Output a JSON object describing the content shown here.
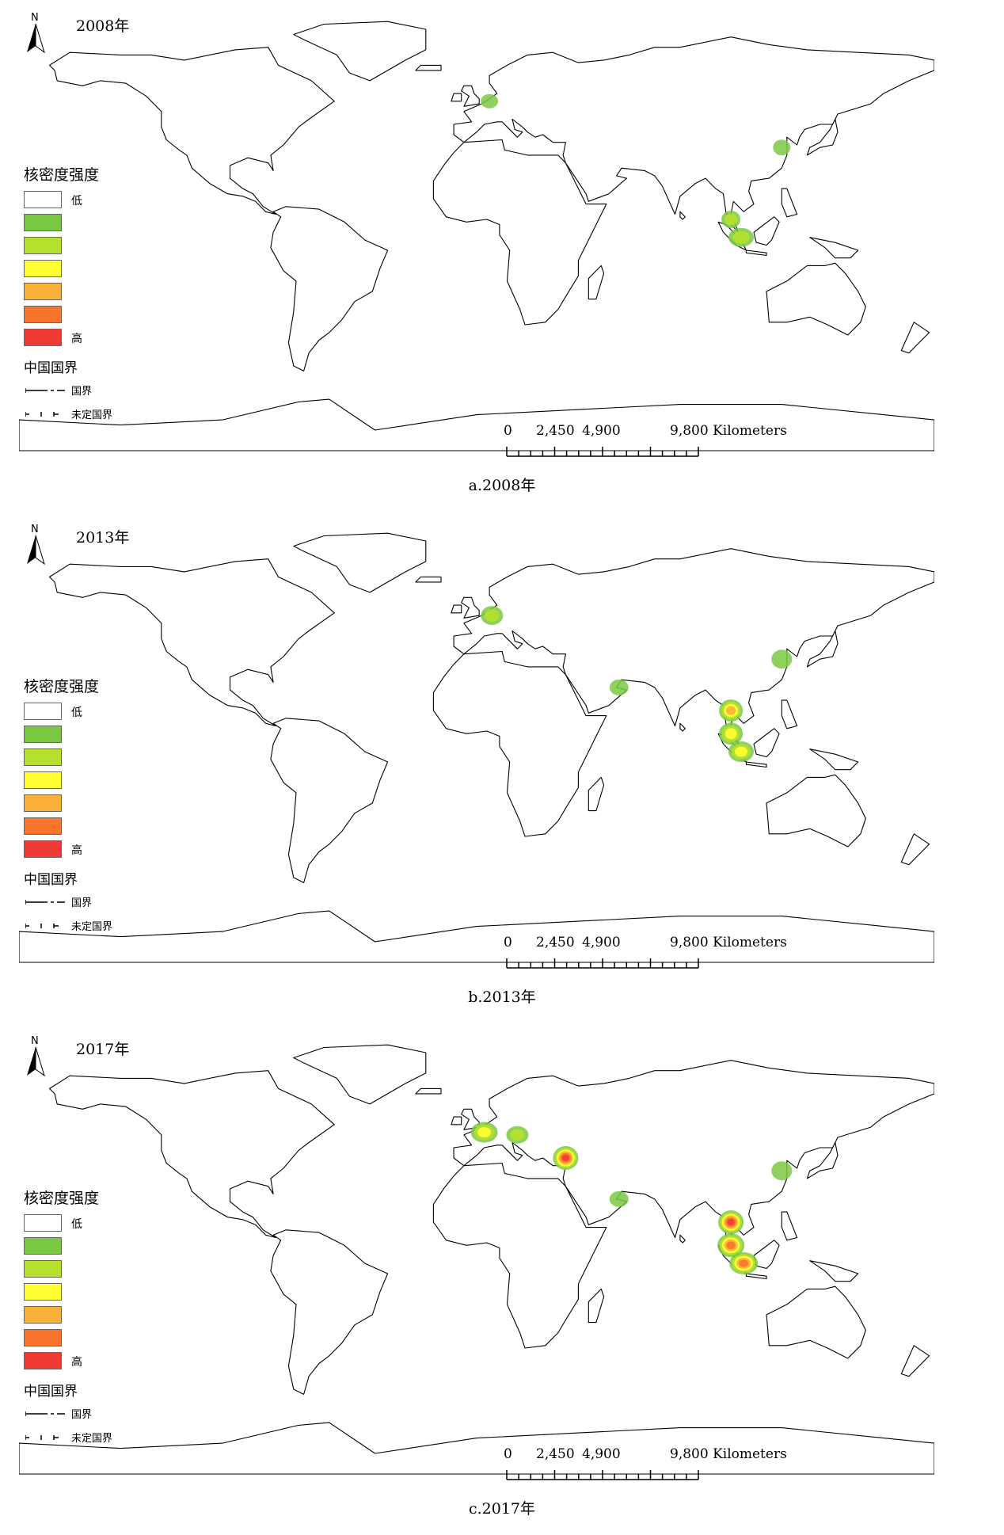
{
  "panels": [
    {
      "year_label": "2008年",
      "caption": "a.2008年",
      "hotspots": [
        {
          "name": "Western Europe",
          "lon": 5,
          "lat": 52,
          "level": 1,
          "rx": 11,
          "ry": 9
        },
        {
          "name": "Eastern China",
          "lon": 120,
          "lat": 34,
          "level": 1,
          "rx": 11,
          "ry": 10
        },
        {
          "name": "Malay Peninsula north",
          "lon": 100,
          "lat": 6,
          "level": 2,
          "rx": 12,
          "ry": 11
        },
        {
          "name": "Malay Peninsula south",
          "lon": 104,
          "lat": -1,
          "level": 2,
          "rx": 16,
          "ry": 12
        }
      ]
    },
    {
      "year_label": "2013年",
      "caption": "b.2013年",
      "hotspots": [
        {
          "name": "Western Europe",
          "lon": 6,
          "lat": 51,
          "level": 2,
          "rx": 14,
          "ry": 12
        },
        {
          "name": "Persian Gulf",
          "lon": 56,
          "lat": 23,
          "level": 1,
          "rx": 12,
          "ry": 10
        },
        {
          "name": "Eastern China",
          "lon": 120,
          "lat": 34,
          "level": 1,
          "rx": 13,
          "ry": 12
        },
        {
          "name": "Thailand",
          "lon": 100,
          "lat": 14,
          "level": 4,
          "rx": 15,
          "ry": 14
        },
        {
          "name": "Malay Peninsula",
          "lon": 100,
          "lat": 5,
          "level": 3,
          "rx": 15,
          "ry": 14
        },
        {
          "name": "Singapore Strait",
          "lon": 104,
          "lat": -2,
          "level": 3,
          "rx": 16,
          "ry": 13
        }
      ]
    },
    {
      "year_label": "2017年",
      "caption": "c.2017年",
      "hotspots": [
        {
          "name": "Western Europe",
          "lon": 3,
          "lat": 49,
          "level": 3,
          "rx": 17,
          "ry": 13
        },
        {
          "name": "Central Europe",
          "lon": 16,
          "lat": 48,
          "level": 2,
          "rx": 14,
          "ry": 11
        },
        {
          "name": "Turkey",
          "lon": 35,
          "lat": 39,
          "level": 6,
          "rx": 16,
          "ry": 15
        },
        {
          "name": "Persian Gulf",
          "lon": 56,
          "lat": 23,
          "level": 1,
          "rx": 12,
          "ry": 10
        },
        {
          "name": "Eastern China",
          "lon": 120,
          "lat": 34,
          "level": 1,
          "rx": 13,
          "ry": 12
        },
        {
          "name": "Thailand",
          "lon": 100,
          "lat": 14,
          "level": 6,
          "rx": 16,
          "ry": 15
        },
        {
          "name": "Malay Peninsula",
          "lon": 100,
          "lat": 5,
          "level": 5,
          "rx": 17,
          "ry": 15
        },
        {
          "name": "Singapore Strait",
          "lon": 105,
          "lat": -2,
          "level": 5,
          "rx": 18,
          "ry": 14
        }
      ]
    }
  ],
  "legend": {
    "title": "核密度强度",
    "low_label": "低",
    "high_label": "高",
    "colors": [
      "#ffffff",
      "#7ac943",
      "#b5e02e",
      "#ffff33",
      "#fbb03b",
      "#f7762c",
      "#ef3a36"
    ]
  },
  "border_legend": {
    "title": "中国国界",
    "national_border": "国界",
    "undetermined_border": "未定国界"
  },
  "north_arrow": {
    "label": "N"
  },
  "scalebar": {
    "ticks": [
      "0",
      "2,450",
      "4,900"
    ],
    "end_label": "9,800 Kilometers"
  }
}
